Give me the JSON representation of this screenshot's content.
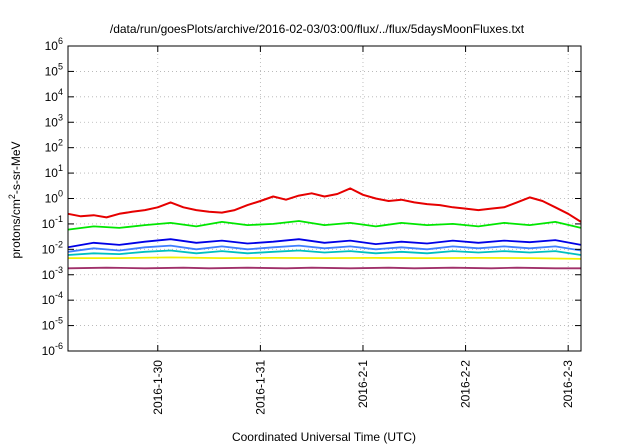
{
  "chart_data": {
    "type": "line",
    "title": "/data/run/goesPlots/archive/2016-02-03/03:00/flux/../flux/5daysMoonFluxes.txt",
    "xlabel": "Coordinated Universal Time (UTC)",
    "ylabel": {
      "prefix": "protons/cm",
      "sup": "2",
      "suffix": "-s-sr-MeV"
    },
    "y_scale": "log",
    "ylim": [
      1e-06,
      1000000.0
    ],
    "y_ticks": [
      {
        "base": "10",
        "exp": "-6",
        "value": 1e-06
      },
      {
        "base": "10",
        "exp": "-5",
        "value": 1e-05
      },
      {
        "base": "10",
        "exp": "-4",
        "value": 0.0001
      },
      {
        "base": "10",
        "exp": "-3",
        "value": 0.001
      },
      {
        "base": "10",
        "exp": "-2",
        "value": 0.01
      },
      {
        "base": "10",
        "exp": "-1",
        "value": 0.1
      },
      {
        "base": "10",
        "exp": "0",
        "value": 1
      },
      {
        "base": "10",
        "exp": "1",
        "value": 10
      },
      {
        "base": "10",
        "exp": "2",
        "value": 100
      },
      {
        "base": "10",
        "exp": "3",
        "value": 1000
      },
      {
        "base": "10",
        "exp": "4",
        "value": 10000
      },
      {
        "base": "10",
        "exp": "5",
        "value": 100000
      },
      {
        "base": "10",
        "exp": "6",
        "value": 1000000
      }
    ],
    "xlim": [
      "2016-01-29 03:00",
      "2016-02-03 03:00"
    ],
    "x_ticks": [
      {
        "label": "2016-1-30",
        "value": "2016-01-30 00:00"
      },
      {
        "label": "2016-1-31",
        "value": "2016-01-31 00:00"
      },
      {
        "label": "2016-2-1",
        "value": "2016-02-01 00:00"
      },
      {
        "label": "2016-2-2",
        "value": "2016-02-02 00:00"
      },
      {
        "label": "2016-2-3",
        "value": "2016-02-03 00:00"
      }
    ],
    "grid": true,
    "series": [
      {
        "color": "#e60000",
        "points": [
          [
            "2016-01-29 03:00",
            0.25
          ],
          [
            "2016-01-29 06:00",
            0.2
          ],
          [
            "2016-01-29 09:00",
            0.22
          ],
          [
            "2016-01-29 12:00",
            0.18
          ],
          [
            "2016-01-29 15:00",
            0.25
          ],
          [
            "2016-01-29 18:00",
            0.3
          ],
          [
            "2016-01-29 21:00",
            0.35
          ],
          [
            "2016-01-30 00:00",
            0.45
          ],
          [
            "2016-01-30 03:00",
            0.7
          ],
          [
            "2016-01-30 06:00",
            0.45
          ],
          [
            "2016-01-30 09:00",
            0.35
          ],
          [
            "2016-01-30 12:00",
            0.3
          ],
          [
            "2016-01-30 15:00",
            0.28
          ],
          [
            "2016-01-30 18:00",
            0.35
          ],
          [
            "2016-01-30 21:00",
            0.55
          ],
          [
            "2016-01-31 00:00",
            0.8
          ],
          [
            "2016-01-31 03:00",
            1.2
          ],
          [
            "2016-01-31 06:00",
            0.9
          ],
          [
            "2016-01-31 09:00",
            1.3
          ],
          [
            "2016-01-31 12:00",
            1.6
          ],
          [
            "2016-01-31 15:00",
            1.2
          ],
          [
            "2016-01-31 18:00",
            1.5
          ],
          [
            "2016-01-31 21:00",
            2.5
          ],
          [
            "2016-02-01 00:00",
            1.4
          ],
          [
            "2016-02-01 03:00",
            1.0
          ],
          [
            "2016-02-01 06:00",
            0.8
          ],
          [
            "2016-02-01 09:00",
            0.9
          ],
          [
            "2016-02-01 12:00",
            0.7
          ],
          [
            "2016-02-01 15:00",
            0.6
          ],
          [
            "2016-02-01 18:00",
            0.55
          ],
          [
            "2016-02-01 21:00",
            0.45
          ],
          [
            "2016-02-02 00:00",
            0.4
          ],
          [
            "2016-02-02 03:00",
            0.35
          ],
          [
            "2016-02-02 06:00",
            0.4
          ],
          [
            "2016-02-02 09:00",
            0.45
          ],
          [
            "2016-02-02 12:00",
            0.7
          ],
          [
            "2016-02-02 15:00",
            1.1
          ],
          [
            "2016-02-02 18:00",
            0.8
          ],
          [
            "2016-02-02 21:00",
            0.45
          ],
          [
            "2016-02-03 00:00",
            0.25
          ],
          [
            "2016-02-03 03:00",
            0.12
          ]
        ]
      },
      {
        "color": "#00e600",
        "points": [
          [
            "2016-01-29 03:00",
            0.06
          ],
          [
            "2016-01-29 09:00",
            0.08
          ],
          [
            "2016-01-29 15:00",
            0.07
          ],
          [
            "2016-01-29 21:00",
            0.09
          ],
          [
            "2016-01-30 03:00",
            0.11
          ],
          [
            "2016-01-30 09:00",
            0.08
          ],
          [
            "2016-01-30 15:00",
            0.12
          ],
          [
            "2016-01-30 21:00",
            0.09
          ],
          [
            "2016-01-31 03:00",
            0.1
          ],
          [
            "2016-01-31 09:00",
            0.13
          ],
          [
            "2016-01-31 15:00",
            0.09
          ],
          [
            "2016-01-31 21:00",
            0.11
          ],
          [
            "2016-02-01 03:00",
            0.08
          ],
          [
            "2016-02-01 09:00",
            0.11
          ],
          [
            "2016-02-01 15:00",
            0.09
          ],
          [
            "2016-02-01 21:00",
            0.1
          ],
          [
            "2016-02-02 03:00",
            0.08
          ],
          [
            "2016-02-02 09:00",
            0.11
          ],
          [
            "2016-02-02 15:00",
            0.09
          ],
          [
            "2016-02-02 21:00",
            0.12
          ],
          [
            "2016-02-03 03:00",
            0.07
          ]
        ]
      },
      {
        "color": "#0000e6",
        "points": [
          [
            "2016-01-29 03:00",
            0.012
          ],
          [
            "2016-01-29 09:00",
            0.018
          ],
          [
            "2016-01-29 15:00",
            0.015
          ],
          [
            "2016-01-29 21:00",
            0.02
          ],
          [
            "2016-01-30 03:00",
            0.025
          ],
          [
            "2016-01-30 09:00",
            0.018
          ],
          [
            "2016-01-30 15:00",
            0.022
          ],
          [
            "2016-01-30 21:00",
            0.017
          ],
          [
            "2016-01-31 03:00",
            0.02
          ],
          [
            "2016-01-31 09:00",
            0.025
          ],
          [
            "2016-01-31 15:00",
            0.018
          ],
          [
            "2016-01-31 21:00",
            0.022
          ],
          [
            "2016-02-01 03:00",
            0.016
          ],
          [
            "2016-02-01 09:00",
            0.02
          ],
          [
            "2016-02-01 15:00",
            0.017
          ],
          [
            "2016-02-01 21:00",
            0.022
          ],
          [
            "2016-02-02 03:00",
            0.018
          ],
          [
            "2016-02-02 09:00",
            0.022
          ],
          [
            "2016-02-02 15:00",
            0.019
          ],
          [
            "2016-02-02 21:00",
            0.023
          ],
          [
            "2016-02-03 03:00",
            0.015
          ]
        ]
      },
      {
        "color": "#4080ff",
        "points": [
          [
            "2016-01-29 03:00",
            0.008
          ],
          [
            "2016-01-29 09:00",
            0.011
          ],
          [
            "2016-01-29 15:00",
            0.009
          ],
          [
            "2016-01-29 21:00",
            0.012
          ],
          [
            "2016-01-30 03:00",
            0.014
          ],
          [
            "2016-01-30 09:00",
            0.01
          ],
          [
            "2016-01-30 15:00",
            0.013
          ],
          [
            "2016-01-30 21:00",
            0.01
          ],
          [
            "2016-01-31 03:00",
            0.012
          ],
          [
            "2016-01-31 09:00",
            0.014
          ],
          [
            "2016-01-31 15:00",
            0.011
          ],
          [
            "2016-01-31 21:00",
            0.013
          ],
          [
            "2016-02-01 03:00",
            0.01
          ],
          [
            "2016-02-01 09:00",
            0.012
          ],
          [
            "2016-02-01 15:00",
            0.01
          ],
          [
            "2016-02-01 21:00",
            0.013
          ],
          [
            "2016-02-02 03:00",
            0.011
          ],
          [
            "2016-02-02 09:00",
            0.013
          ],
          [
            "2016-02-02 15:00",
            0.011
          ],
          [
            "2016-02-02 21:00",
            0.013
          ],
          [
            "2016-02-03 03:00",
            0.009
          ]
        ]
      },
      {
        "color": "#00c0c0",
        "points": [
          [
            "2016-01-29 03:00",
            0.006
          ],
          [
            "2016-01-29 09:00",
            0.007
          ],
          [
            "2016-01-29 15:00",
            0.0065
          ],
          [
            "2016-01-29 21:00",
            0.008
          ],
          [
            "2016-01-30 03:00",
            0.009
          ],
          [
            "2016-01-30 09:00",
            0.007
          ],
          [
            "2016-01-30 15:00",
            0.0085
          ],
          [
            "2016-01-30 21:00",
            0.007
          ],
          [
            "2016-01-31 03:00",
            0.008
          ],
          [
            "2016-01-31 09:00",
            0.009
          ],
          [
            "2016-01-31 15:00",
            0.0075
          ],
          [
            "2016-01-31 21:00",
            0.0085
          ],
          [
            "2016-02-01 03:00",
            0.007
          ],
          [
            "2016-02-01 09:00",
            0.008
          ],
          [
            "2016-02-01 15:00",
            0.007
          ],
          [
            "2016-02-01 21:00",
            0.0085
          ],
          [
            "2016-02-02 03:00",
            0.0075
          ],
          [
            "2016-02-02 09:00",
            0.0085
          ],
          [
            "2016-02-02 15:00",
            0.0075
          ],
          [
            "2016-02-02 21:00",
            0.0085
          ],
          [
            "2016-02-03 03:00",
            0.006
          ]
        ]
      },
      {
        "color": "#f0f000",
        "points": [
          [
            "2016-01-29 03:00",
            0.0045
          ],
          [
            "2016-01-29 15:00",
            0.0045
          ],
          [
            "2016-01-30 03:00",
            0.0048
          ],
          [
            "2016-01-30 15:00",
            0.0045
          ],
          [
            "2016-01-31 03:00",
            0.0046
          ],
          [
            "2016-01-31 15:00",
            0.0045
          ],
          [
            "2016-02-01 03:00",
            0.0046
          ],
          [
            "2016-02-01 15:00",
            0.0045
          ],
          [
            "2016-02-02 03:00",
            0.0046
          ],
          [
            "2016-02-02 15:00",
            0.0045
          ],
          [
            "2016-02-03 03:00",
            0.0042
          ]
        ]
      },
      {
        "color": "#a0306a",
        "points": [
          [
            "2016-01-29 03:00",
            0.0018
          ],
          [
            "2016-01-29 12:00",
            0.0019
          ],
          [
            "2016-01-29 21:00",
            0.0018
          ],
          [
            "2016-01-30 06:00",
            0.0019
          ],
          [
            "2016-01-30 12:00",
            0.0018
          ],
          [
            "2016-01-30 21:00",
            0.0019
          ],
          [
            "2016-01-31 06:00",
            0.0018
          ],
          [
            "2016-01-31 12:00",
            0.0019
          ],
          [
            "2016-01-31 21:00",
            0.0018
          ],
          [
            "2016-02-01 06:00",
            0.0019
          ],
          [
            "2016-02-01 12:00",
            0.0018
          ],
          [
            "2016-02-01 21:00",
            0.0019
          ],
          [
            "2016-02-02 06:00",
            0.0018
          ],
          [
            "2016-02-02 12:00",
            0.0019
          ],
          [
            "2016-02-02 21:00",
            0.0018
          ],
          [
            "2016-02-03 03:00",
            0.0018
          ]
        ]
      }
    ]
  }
}
